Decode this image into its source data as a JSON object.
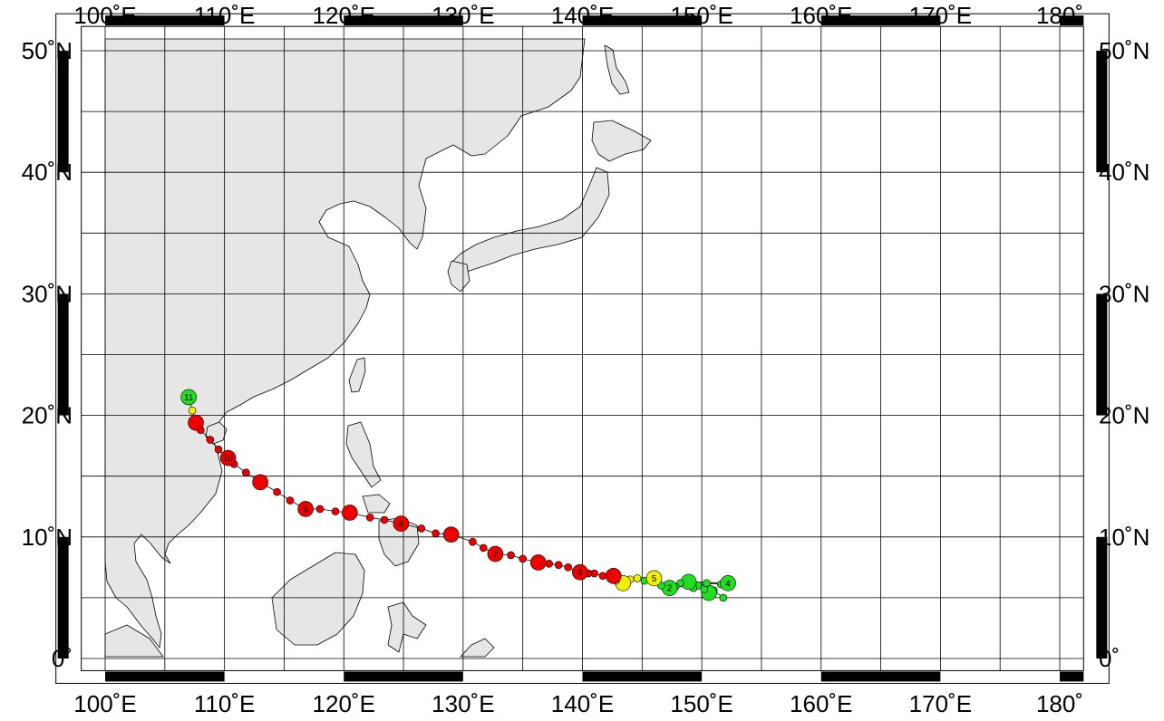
{
  "map": {
    "lon_range": [
      98,
      182
    ],
    "lat_range": [
      -1,
      52
    ],
    "grid_lon_step": 5,
    "grid_lat_step": 5,
    "land_color": "#e6e6e6",
    "frame_bar_lon": [
      100,
      110,
      120,
      130,
      140,
      150,
      160,
      170,
      180
    ],
    "frame_bar_lat": [
      0,
      10,
      20,
      30,
      40,
      50
    ],
    "lon_labels": [
      {
        "value": 100,
        "text": "100˚E"
      },
      {
        "value": 110,
        "text": "110˚E"
      },
      {
        "value": 120,
        "text": "120˚E"
      },
      {
        "value": 130,
        "text": "130˚E"
      },
      {
        "value": 140,
        "text": "140˚E"
      },
      {
        "value": 150,
        "text": "150˚E"
      },
      {
        "value": 160,
        "text": "160˚E"
      },
      {
        "value": 170,
        "text": "170˚E"
      },
      {
        "value": 180,
        "text": "180˚"
      }
    ],
    "lat_labels": [
      {
        "value": 50,
        "text": "50˚N"
      },
      {
        "value": 40,
        "text": "40˚N"
      },
      {
        "value": 30,
        "text": "30˚N"
      },
      {
        "value": 20,
        "text": "20˚N"
      },
      {
        "value": 10,
        "text": "10˚N"
      },
      {
        "value": 0,
        "text": "0˚"
      }
    ]
  },
  "track": {
    "colors": {
      "green": "#22dd22",
      "yellow": "#f0f000",
      "red": "#ee0000"
    },
    "points": [
      {
        "lon": 151.8,
        "lat": 5.0,
        "c": "green"
      },
      {
        "lon": 151.0,
        "lat": 5.6,
        "c": "green"
      },
      {
        "lon": 150.6,
        "lat": 5.4,
        "c": "green",
        "big": true
      },
      {
        "lon": 150.2,
        "lat": 5.7,
        "c": "green"
      },
      {
        "lon": 149.7,
        "lat": 6.0,
        "c": "green"
      },
      {
        "lon": 149.3,
        "lat": 5.8,
        "c": "green"
      },
      {
        "lon": 150.4,
        "lat": 6.2,
        "c": "green"
      },
      {
        "lon": 151.6,
        "lat": 6.1,
        "c": "green"
      },
      {
        "lon": 152.2,
        "lat": 6.2,
        "c": "green",
        "big": true,
        "label": "4"
      },
      {
        "lon": 148.9,
        "lat": 6.3,
        "c": "green",
        "big": true
      },
      {
        "lon": 148.2,
        "lat": 6.2,
        "c": "green"
      },
      {
        "lon": 147.8,
        "lat": 5.9,
        "c": "green"
      },
      {
        "lon": 147.3,
        "lat": 5.8,
        "c": "green",
        "big": true,
        "label": "2"
      },
      {
        "lon": 146.6,
        "lat": 6.0,
        "c": "green"
      },
      {
        "lon": 146.0,
        "lat": 6.3,
        "c": "green"
      },
      {
        "lon": 145.2,
        "lat": 6.4,
        "c": "green"
      },
      {
        "lon": 146.0,
        "lat": 6.6,
        "c": "yellow",
        "big": true,
        "label": "5"
      },
      {
        "lon": 144.6,
        "lat": 6.6,
        "c": "yellow"
      },
      {
        "lon": 144.0,
        "lat": 6.5,
        "c": "yellow"
      },
      {
        "lon": 143.4,
        "lat": 6.2,
        "c": "yellow",
        "big": true
      },
      {
        "lon": 142.8,
        "lat": 6.4,
        "c": "yellow"
      },
      {
        "lon": 142.6,
        "lat": 6.8,
        "c": "red",
        "big": true
      },
      {
        "lon": 141.7,
        "lat": 6.8,
        "c": "red"
      },
      {
        "lon": 141.0,
        "lat": 7.0,
        "c": "red"
      },
      {
        "lon": 140.5,
        "lat": 7.0,
        "c": "red"
      },
      {
        "lon": 139.8,
        "lat": 7.1,
        "c": "red",
        "big": true,
        "label": "6"
      },
      {
        "lon": 138.8,
        "lat": 7.5,
        "c": "red"
      },
      {
        "lon": 138.0,
        "lat": 7.7,
        "c": "red"
      },
      {
        "lon": 137.2,
        "lat": 7.8,
        "c": "red"
      },
      {
        "lon": 136.3,
        "lat": 7.9,
        "c": "red",
        "big": true
      },
      {
        "lon": 135.0,
        "lat": 8.2,
        "c": "red"
      },
      {
        "lon": 134.0,
        "lat": 8.5,
        "c": "red"
      },
      {
        "lon": 132.7,
        "lat": 8.6,
        "c": "red",
        "big": true,
        "label": "7"
      },
      {
        "lon": 131.7,
        "lat": 9.1,
        "c": "red"
      },
      {
        "lon": 130.8,
        "lat": 9.6,
        "c": "red"
      },
      {
        "lon": 129.0,
        "lat": 10.2,
        "c": "red",
        "big": true
      },
      {
        "lon": 127.7,
        "lat": 10.3,
        "c": "red"
      },
      {
        "lon": 126.5,
        "lat": 10.7,
        "c": "red"
      },
      {
        "lon": 124.8,
        "lat": 11.1,
        "c": "red",
        "big": true,
        "label": "8"
      },
      {
        "lon": 123.4,
        "lat": 11.4,
        "c": "red"
      },
      {
        "lon": 122.2,
        "lat": 11.6,
        "c": "red"
      },
      {
        "lon": 120.5,
        "lat": 12.0,
        "c": "red",
        "big": true
      },
      {
        "lon": 119.3,
        "lat": 12.1,
        "c": "red"
      },
      {
        "lon": 118.0,
        "lat": 12.3,
        "c": "red"
      },
      {
        "lon": 116.8,
        "lat": 12.3,
        "c": "red",
        "big": true,
        "label": "9"
      },
      {
        "lon": 115.5,
        "lat": 13.0,
        "c": "red"
      },
      {
        "lon": 114.4,
        "lat": 13.7,
        "c": "red"
      },
      {
        "lon": 113.0,
        "lat": 14.5,
        "c": "red",
        "big": true
      },
      {
        "lon": 111.8,
        "lat": 15.3,
        "c": "red"
      },
      {
        "lon": 110.8,
        "lat": 16.0,
        "c": "red"
      },
      {
        "lon": 110.3,
        "lat": 16.5,
        "c": "red",
        "big": true,
        "label": "10"
      },
      {
        "lon": 109.5,
        "lat": 17.2,
        "c": "red"
      },
      {
        "lon": 108.8,
        "lat": 18.0,
        "c": "red"
      },
      {
        "lon": 108.0,
        "lat": 18.8,
        "c": "red"
      },
      {
        "lon": 107.6,
        "lat": 19.4,
        "c": "red",
        "big": true
      },
      {
        "lon": 107.3,
        "lat": 20.4,
        "c": "yellow"
      },
      {
        "lon": 107.0,
        "lat": 21.5,
        "c": "green",
        "big": true,
        "label": "11"
      }
    ]
  }
}
